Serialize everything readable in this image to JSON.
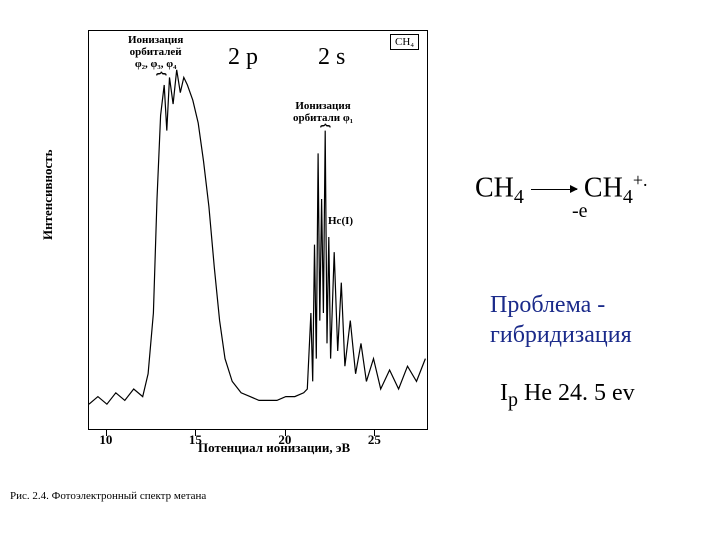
{
  "chart": {
    "type": "line",
    "molecule_box": "CH₄",
    "top_labels": {
      "left": "Ионизация\nорбиталей\nφ₂, φ₃, φ₄",
      "right": "Ионизация\nорбитали φ₁"
    },
    "orbital_2p": "2 p",
    "orbital_2s": "2 s",
    "he_label": "Hc(I)",
    "ylabel": "Интенсивность",
    "xlabel": "Потенциал ионизации, эВ",
    "caption": "Рис. 2.4. Фотоэлектронный спектр метана",
    "xlim": [
      9,
      28
    ],
    "ylim": [
      0,
      100
    ],
    "xticks": [
      10,
      15,
      20,
      25
    ],
    "line_color": "#000000",
    "background_color": "#ffffff",
    "border_color": "#000000",
    "data": [
      [
        9.0,
        6
      ],
      [
        9.5,
        8
      ],
      [
        10.0,
        6
      ],
      [
        10.5,
        9
      ],
      [
        11.0,
        7
      ],
      [
        11.5,
        10
      ],
      [
        12.0,
        8
      ],
      [
        12.3,
        14
      ],
      [
        12.6,
        30
      ],
      [
        12.8,
        60
      ],
      [
        13.0,
        82
      ],
      [
        13.2,
        90
      ],
      [
        13.35,
        78
      ],
      [
        13.5,
        92
      ],
      [
        13.7,
        85
      ],
      [
        13.9,
        94
      ],
      [
        14.1,
        88
      ],
      [
        14.3,
        92
      ],
      [
        14.5,
        90
      ],
      [
        14.8,
        86
      ],
      [
        15.1,
        80
      ],
      [
        15.4,
        70
      ],
      [
        15.7,
        58
      ],
      [
        16.0,
        42
      ],
      [
        16.3,
        28
      ],
      [
        16.6,
        18
      ],
      [
        17.0,
        12
      ],
      [
        17.5,
        9
      ],
      [
        18.0,
        8
      ],
      [
        18.5,
        7
      ],
      [
        19.0,
        7
      ],
      [
        19.5,
        7
      ],
      [
        20.0,
        8
      ],
      [
        20.5,
        8
      ],
      [
        21.0,
        9
      ],
      [
        21.2,
        10
      ],
      [
        21.4,
        30
      ],
      [
        21.5,
        12
      ],
      [
        21.6,
        48
      ],
      [
        21.7,
        18
      ],
      [
        21.8,
        72
      ],
      [
        21.9,
        28
      ],
      [
        22.0,
        60
      ],
      [
        22.1,
        30
      ],
      [
        22.2,
        78
      ],
      [
        22.3,
        22
      ],
      [
        22.4,
        50
      ],
      [
        22.5,
        18
      ],
      [
        22.7,
        46
      ],
      [
        22.9,
        20
      ],
      [
        23.1,
        38
      ],
      [
        23.3,
        16
      ],
      [
        23.6,
        28
      ],
      [
        23.9,
        14
      ],
      [
        24.2,
        22
      ],
      [
        24.5,
        12
      ],
      [
        24.9,
        18
      ],
      [
        25.3,
        10
      ],
      [
        25.8,
        15
      ],
      [
        26.3,
        10
      ],
      [
        26.8,
        16
      ],
      [
        27.3,
        12
      ],
      [
        27.8,
        18
      ]
    ]
  },
  "equation": {
    "lhs": "CH",
    "lhs_sub": "4",
    "rhs": "CH",
    "rhs_sub": "4",
    "rhs_sup": "+.",
    "minus_e": "-e"
  },
  "problem": {
    "line1": "Проблема -",
    "line2": "гибридизация",
    "color": "#1a2a8a"
  },
  "ip": {
    "text_prefix": "I",
    "text_sub": "p",
    "text_rest": " He 24. 5 ev"
  },
  "fonts": {
    "body": "Times New Roman",
    "title_size": 24,
    "label_size": 13
  }
}
